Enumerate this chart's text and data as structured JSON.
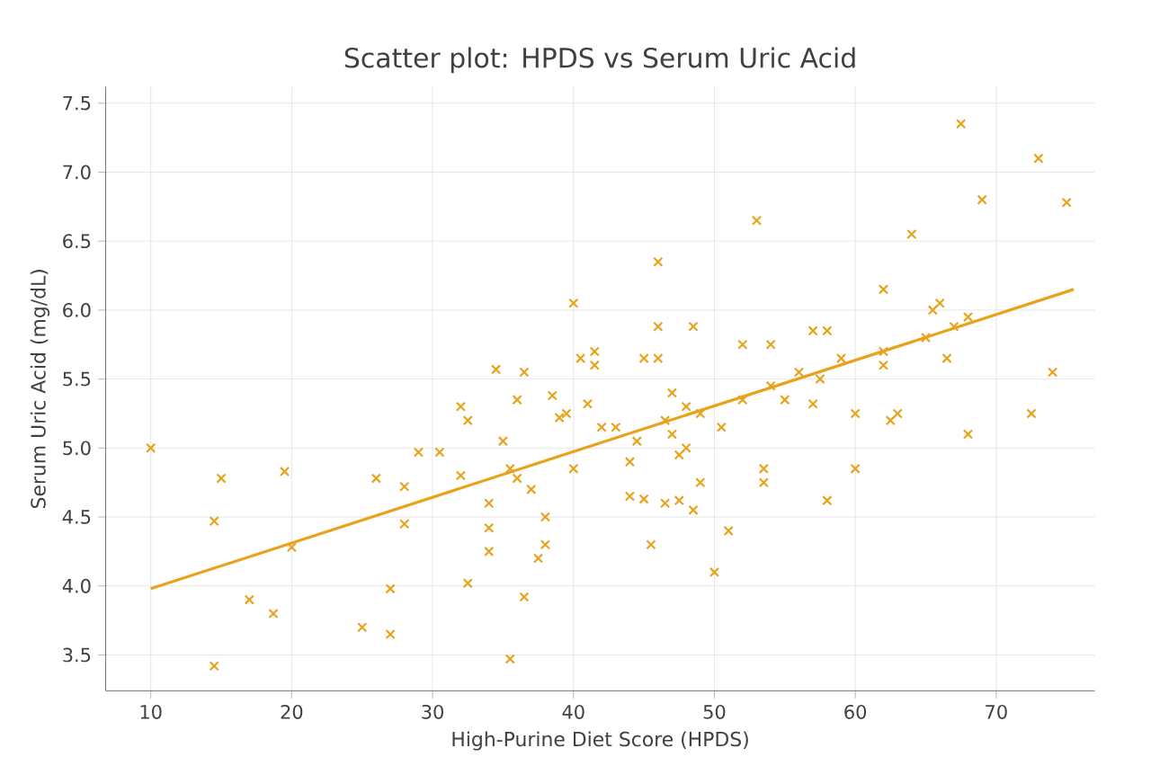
{
  "chart_data": {
    "type": "scatter",
    "title": "Scatter plot: HPDS vs Serum Uric Acid",
    "xlabel": "High-Purine Diet Score (HPDS)",
    "ylabel": "Serum Uric Acid (mg/dL)",
    "xlim": [
      6.8,
      77
    ],
    "ylim": [
      3.24,
      7.62
    ],
    "xticks": [
      10,
      20,
      30,
      40,
      50,
      60,
      70
    ],
    "yticks": [
      3.5,
      {
        "value": 4,
        "label": "4.0"
      },
      4.5,
      {
        "value": 5,
        "label": "5.0"
      },
      5.5,
      {
        "value": 6,
        "label": "6.0"
      },
      6.5,
      {
        "value": 7,
        "label": "7.0"
      },
      7.5
    ],
    "grid": true,
    "series": [
      {
        "marker": "cross",
        "color": "#e8a31c",
        "x": [
          10,
          14.5,
          14.5,
          15,
          17,
          18.7,
          19.5,
          20,
          25,
          26,
          27,
          27,
          28,
          28,
          29,
          30.5,
          32,
          32,
          32.5,
          32.5,
          34,
          34,
          34,
          34.5,
          35,
          35.5,
          35.5,
          36,
          36,
          36.5,
          36.5,
          37,
          37.5,
          38,
          38,
          38.5,
          39,
          39.5,
          40,
          40,
          40.5,
          41,
          41.5,
          41.5,
          42,
          43,
          44,
          44,
          44.5,
          45,
          45,
          45.5,
          46,
          46,
          46,
          46.5,
          46.5,
          47,
          47,
          47.5,
          47.5,
          48,
          48,
          48.5,
          48.5,
          49,
          49,
          50,
          50.5,
          51,
          52,
          52,
          53,
          53.5,
          53.5,
          54,
          54,
          55,
          56,
          57,
          57,
          57.5,
          58,
          58,
          59,
          60,
          60,
          62,
          62,
          62,
          62.5,
          63,
          64,
          65,
          65.5,
          66,
          66.5,
          67,
          67.5,
          68,
          68,
          69,
          72.5,
          73,
          74,
          75
        ],
        "values": [
          5.0,
          4.47,
          3.42,
          4.78,
          3.9,
          3.8,
          4.83,
          4.28,
          3.7,
          4.78,
          3.98,
          3.65,
          4.45,
          4.72,
          4.97,
          4.97,
          4.8,
          5.3,
          5.2,
          4.02,
          4.6,
          4.42,
          4.25,
          5.57,
          5.05,
          4.85,
          3.47,
          5.35,
          4.78,
          5.55,
          3.92,
          4.7,
          4.2,
          4.5,
          4.3,
          5.38,
          5.22,
          5.25,
          6.05,
          4.85,
          5.65,
          5.32,
          5.7,
          5.6,
          5.15,
          5.15,
          4.9,
          4.65,
          5.05,
          4.63,
          5.65,
          4.3,
          6.35,
          5.88,
          5.65,
          5.2,
          4.6,
          5.4,
          5.1,
          4.95,
          4.62,
          5.3,
          5.0,
          5.88,
          4.55,
          4.75,
          5.25,
          4.1,
          5.15,
          4.4,
          5.35,
          5.75,
          6.65,
          4.75,
          4.85,
          5.45,
          5.75,
          5.35,
          5.55,
          5.85,
          5.32,
          5.5,
          5.85,
          4.62,
          5.65,
          5.25,
          4.85,
          6.15,
          5.7,
          5.6,
          5.2,
          5.25,
          6.55,
          5.8,
          6.0,
          6.05,
          5.65,
          5.88,
          7.35,
          5.95,
          5.1,
          6.8,
          5.25,
          7.1,
          5.55,
          6.78
        ]
      },
      {
        "type": "line",
        "line_style": "solid",
        "color": "#e8a31c",
        "x": [
          10,
          75.5
        ],
        "values": [
          3.98,
          6.15
        ]
      }
    ]
  }
}
